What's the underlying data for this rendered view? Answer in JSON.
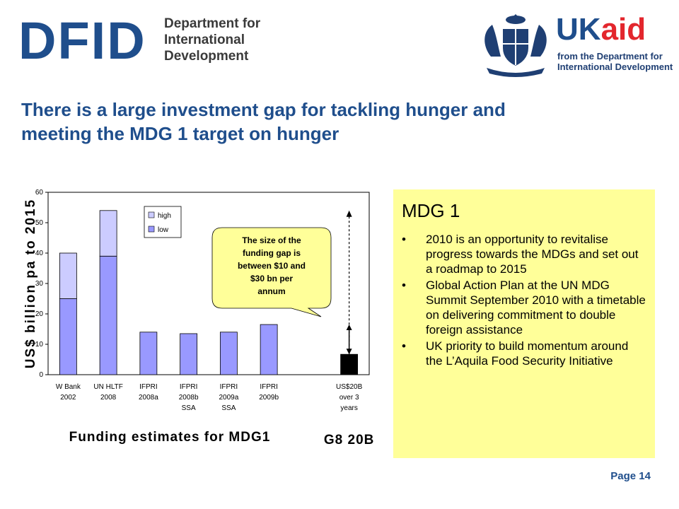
{
  "header": {
    "dfid_logo": {
      "letters": "DFID",
      "subtitle_lines": [
        "Department for",
        "International",
        "Development"
      ]
    },
    "ukaid_logo": {
      "uk": "UK",
      "aid": "aid",
      "tagline_lines": [
        "from the Department for",
        "International Development"
      ]
    }
  },
  "headline_lines": [
    "There is a large investment gap for tackling hunger and",
    "meeting the MDG 1 target on hunger"
  ],
  "chart_data": {
    "type": "bar",
    "stacked": true,
    "xlabel": "Funding estimates for  MDG1",
    "xlabel_right": "G8 20B",
    "ylabel": "US$ billion pa to 2015",
    "ylim": [
      0,
      60
    ],
    "yticks": [
      0,
      10,
      20,
      30,
      40,
      50,
      60
    ],
    "grid": false,
    "legend_position": "top-left",
    "categories": [
      [
        "W Bank",
        "2002"
      ],
      [
        "UN HLTF",
        "2008"
      ],
      [
        "IFPRI",
        "2008a"
      ],
      [
        "IFPRI",
        "2008b",
        "SSA"
      ],
      [
        "IFPRI",
        "2009a",
        "SSA"
      ],
      [
        "IFPRI",
        "2009b"
      ],
      [
        ""
      ],
      [
        "US$20B",
        "over 3",
        "years"
      ]
    ],
    "series": [
      {
        "name": "low",
        "color": "#9999ff",
        "values": [
          25,
          39,
          14,
          13.5,
          14,
          16.5,
          null,
          6.7
        ]
      },
      {
        "name": "high",
        "color": "#ccccff",
        "values": [
          15,
          15,
          0,
          0,
          0,
          0,
          null,
          0
        ]
      }
    ],
    "special_bar_color": "#000000",
    "gap_arrow": {
      "from": 6.7,
      "to": 54
    },
    "gap_arrow_lower_to": 16.5,
    "callout_lines": [
      "The size of the",
      "funding gap is",
      "between $10 and",
      "$30 bn per",
      "annum"
    ]
  },
  "mdg_box": {
    "title": "MDG 1",
    "bullets": [
      " 2010 is an opportunity to revitalise progress towards the MDGs and set out a roadmap to 2015",
      "Global Action Plan at the UN MDG Summit September 2010 with a timetable on delivering commitment to double foreign assistance",
      "UK priority to build momentum around the L’Aquila Food Security Initiative"
    ],
    "bullet_char": "•",
    "bg_color": "#ffff99"
  },
  "footer": {
    "page_label": "Page 14"
  },
  "colors": {
    "brand_blue": "#1f4e8c",
    "aid_red": "#e3262d"
  }
}
